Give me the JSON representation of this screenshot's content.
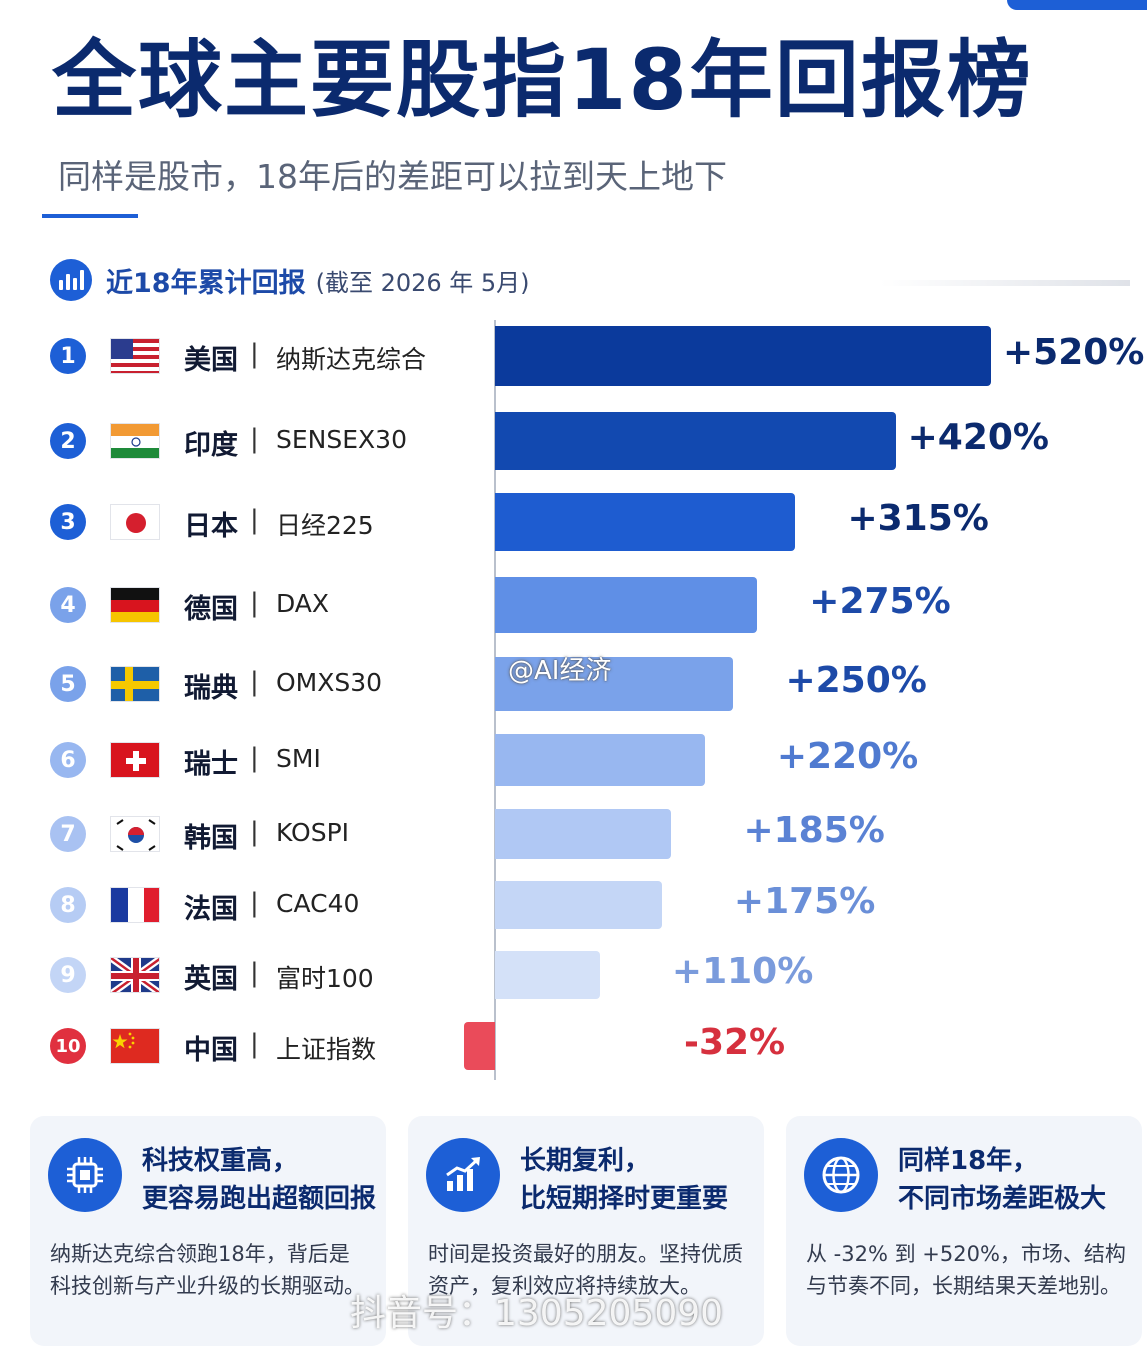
{
  "header": {
    "title": "全球主要股指18年回报榜",
    "subtitle": "同样是股市，18年后的差距可以拉到天上地下"
  },
  "section": {
    "label": "近18年累计回报",
    "note": "(截至 2026 年 5月)",
    "icon": "bar-chart-icon"
  },
  "chart_data": {
    "type": "bar",
    "orientation": "horizontal",
    "categories": [
      "美国｜纳斯达克综合",
      "印度｜SENSEX30",
      "日本｜日经225",
      "德国｜DAX",
      "瑞典｜OMXS30",
      "瑞士｜SMI",
      "韩国｜KOSPI",
      "法国｜CAC40",
      "英国｜富时100",
      "中国｜上证指数"
    ],
    "values": [
      520,
      420,
      315,
      275,
      250,
      220,
      185,
      175,
      110,
      -32
    ],
    "unit": "%",
    "xlim": [
      -32,
      520
    ],
    "rows": [
      {
        "rank": "1",
        "country": "美国",
        "index": "纳斯达克综合",
        "value": 520,
        "label": "+520%",
        "flag": "us",
        "bar_color": "#0b3a9c",
        "rank_color": "#1d5fd6",
        "label_color": "#0b2a6e"
      },
      {
        "rank": "2",
        "country": "印度",
        "index": "SENSEX30",
        "value": 420,
        "label": "+420%",
        "flag": "in",
        "bar_color": "#1249b0",
        "rank_color": "#1d5fd6",
        "label_color": "#0b2a6e"
      },
      {
        "rank": "3",
        "country": "日本",
        "index": "日经225",
        "value": 315,
        "label": "+315%",
        "flag": "jp",
        "bar_color": "#1e5cd0",
        "rank_color": "#1d5fd6",
        "label_color": "#0b2a6e"
      },
      {
        "rank": "4",
        "country": "德国",
        "index": "DAX",
        "value": 275,
        "label": "+275%",
        "flag": "de",
        "bar_color": "#5f8fe6",
        "rank_color": "#7aa2ea",
        "label_color": "#1d4aa8"
      },
      {
        "rank": "5",
        "country": "瑞典",
        "index": "OMXS30",
        "value": 250,
        "label": "+250%",
        "flag": "se",
        "bar_color": "#7aa2ea",
        "rank_color": "#7aa2ea",
        "label_color": "#1d4aa8"
      },
      {
        "rank": "6",
        "country": "瑞士",
        "index": "SMI",
        "value": 220,
        "label": "+220%",
        "flag": "ch",
        "bar_color": "#98b7f0",
        "rank_color": "#98b7f0",
        "label_color": "#4f7ad0"
      },
      {
        "rank": "7",
        "country": "韩国",
        "index": "KOSPI",
        "value": 185,
        "label": "+185%",
        "flag": "kr",
        "bar_color": "#b0c8f4",
        "rank_color": "#a9c2f2",
        "label_color": "#5a82d4"
      },
      {
        "rank": "8",
        "country": "法国",
        "index": "CAC40",
        "value": 175,
        "label": "+175%",
        "flag": "fr",
        "bar_color": "#c4d6f6",
        "rank_color": "#b6ccf4",
        "label_color": "#6a8fd8"
      },
      {
        "rank": "9",
        "country": "英国",
        "index": "富时100",
        "value": 110,
        "label": "+110%",
        "flag": "gb",
        "bar_color": "#d4e1f8",
        "rank_color": "#c3d5f6",
        "label_color": "#7a9bdc"
      },
      {
        "rank": "10",
        "country": "中国",
        "index": "上证指数",
        "value": -32,
        "label": "-32%",
        "flag": "cn",
        "bar_color": "#ea4b5a",
        "rank_color": "#e0303f",
        "label_color": "#d6303e"
      }
    ]
  },
  "cards": [
    {
      "icon": "chip-icon",
      "title1": "科技权重高，",
      "title2": "更容易跑出超额回报",
      "body": "纳斯达克综合领跑18年，背后是科技创新与产业升级的长期驱动。"
    },
    {
      "icon": "growth-chart-icon",
      "title1": "长期复利，",
      "title2": "比短期择时更重要",
      "body": "时间是投资最好的朋友。坚持优质资产，复利效应将持续放大。"
    },
    {
      "icon": "globe-icon",
      "title1": "同样18年，",
      "title2": "不同市场差距极大",
      "body": "从 -32% 到 +520%，市场、结构与节奏不同，长期结果天差地别。"
    }
  ],
  "watermarks": {
    "weibo": "@AI经济",
    "douyin": "抖音号：1305205090"
  }
}
